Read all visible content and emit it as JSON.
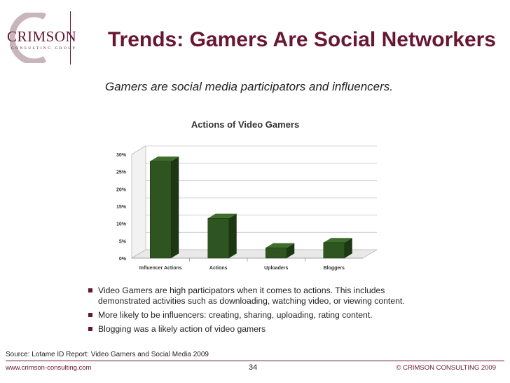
{
  "logo": {
    "wordmark": "CRIMSON",
    "subline": "CONSULTING GROUP"
  },
  "header": {
    "title": "Trends: Gamers Are Social Networkers"
  },
  "subtitle": "Gamers are social media participators and influencers.",
  "chart_data": {
    "type": "bar",
    "title": "Actions of Video Gamers",
    "categories": [
      "Influencer Actions",
      "Actions",
      "Uploaders",
      "Bloggers"
    ],
    "values": [
      28,
      11.5,
      3,
      4.5
    ],
    "ylim": [
      0,
      30
    ],
    "yticks": [
      "0%",
      "5%",
      "10%",
      "15%",
      "20%",
      "25%",
      "30%"
    ],
    "grid": true,
    "style": "3d",
    "colors": {
      "bar": "#2e5520",
      "bar_side": "#1c3812",
      "bar_top": "#3f6e2c"
    }
  },
  "bullets": [
    "Video Gamers are high participators when it comes to actions.  This includes demonstrated activities such as downloading, watching video, or viewing content.",
    "More likely to be influencers: creating, sharing, uploading, rating content.",
    "Blogging was a likely action of video gamers"
  ],
  "source": "Source: Lotame ID Report: Video Gamers and Social Media 2009",
  "footer": {
    "website": "www.crimson-consulting.com",
    "page": "34",
    "copyright": "© CRIMSON CONSULTING 2009"
  },
  "colors": {
    "brand": "#6b1530"
  }
}
